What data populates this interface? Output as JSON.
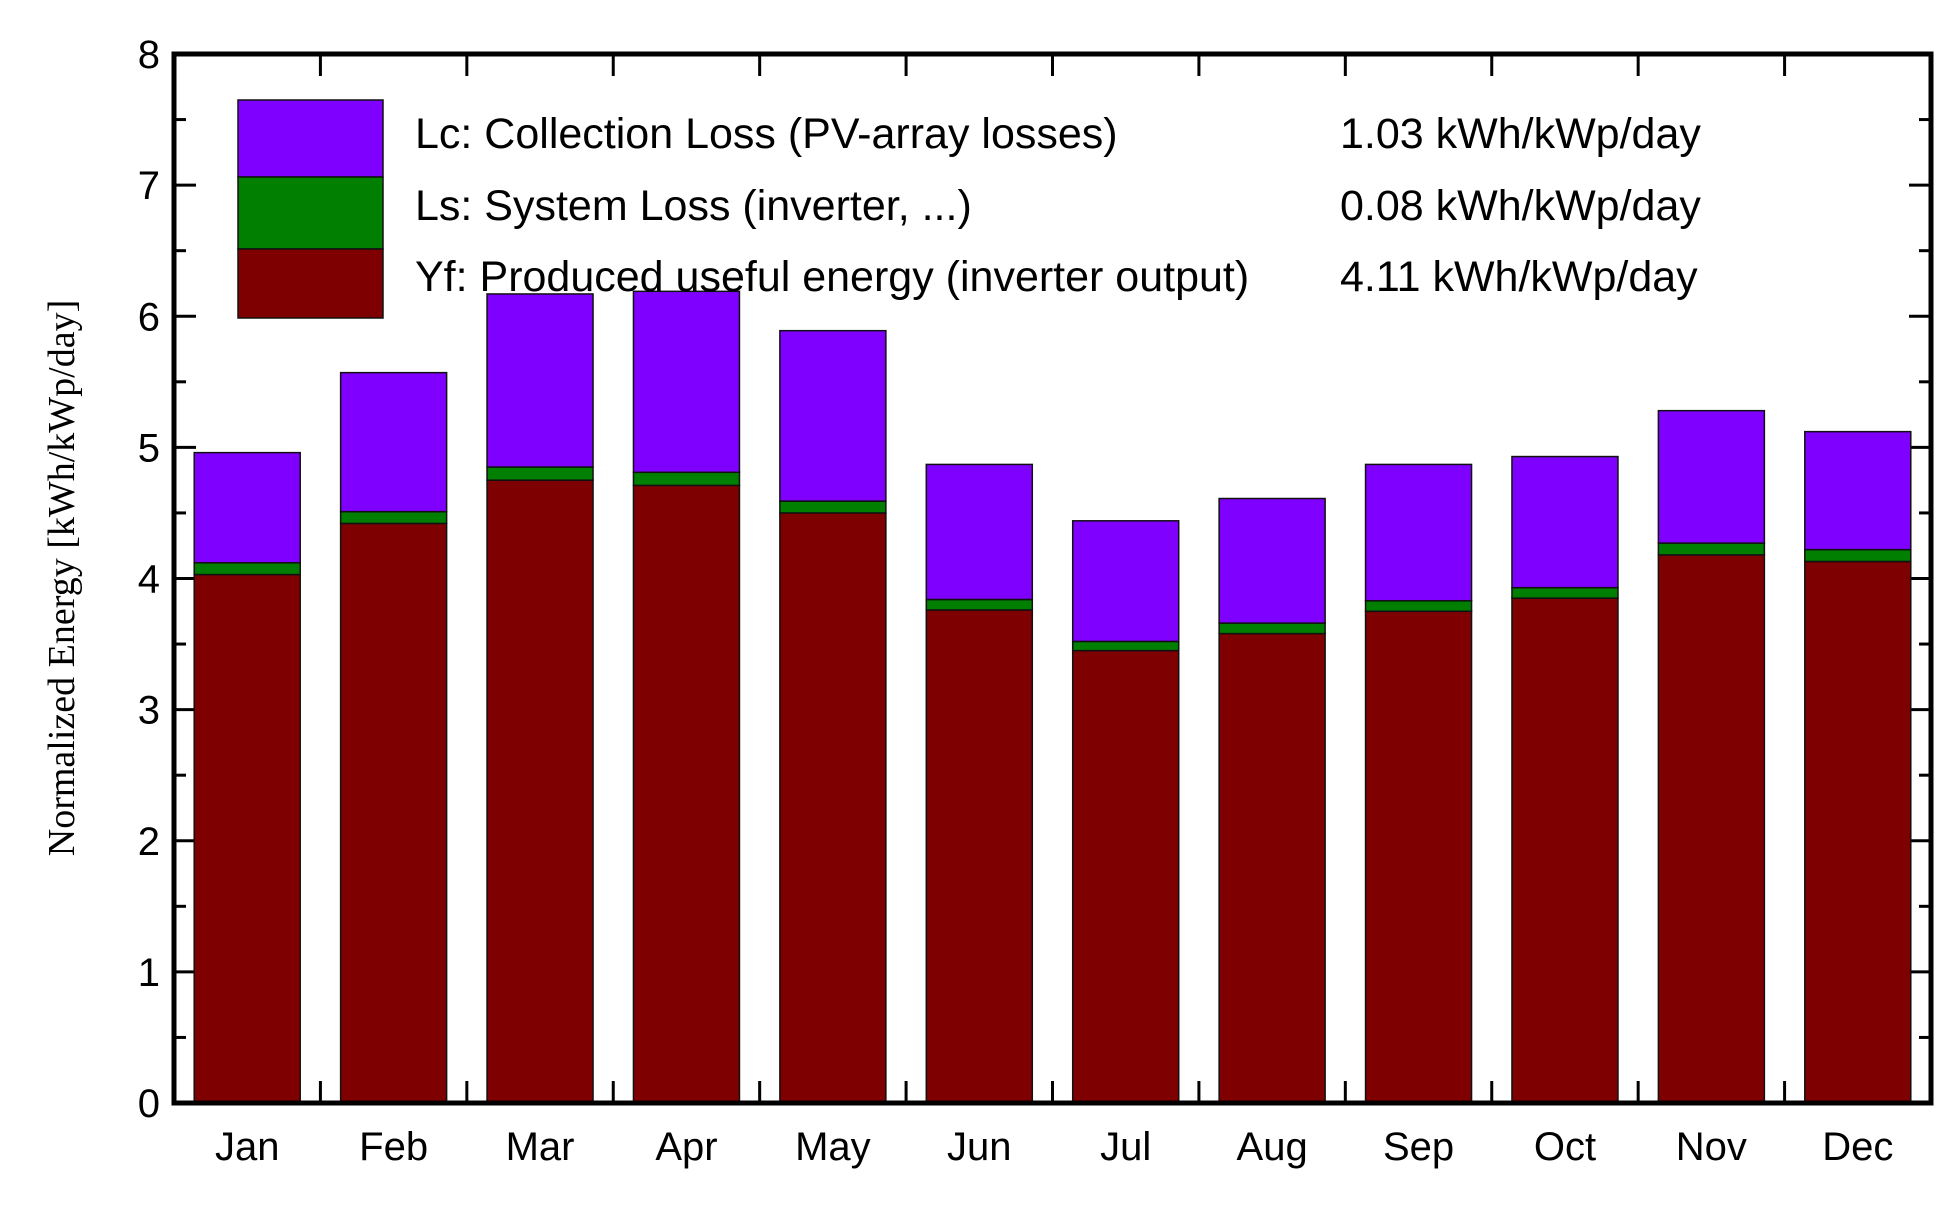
{
  "chart_data": {
    "type": "bar",
    "stacked": true,
    "title": "",
    "xlabel": "",
    "ylabel": "Normalized Energy [kWh/kWp/day]",
    "ylim": [
      0,
      8
    ],
    "yticks": [
      0,
      1,
      2,
      3,
      4,
      5,
      6,
      7,
      8
    ],
    "categories": [
      "Jan",
      "Feb",
      "Mar",
      "Apr",
      "May",
      "Jun",
      "Jul",
      "Aug",
      "Sep",
      "Oct",
      "Nov",
      "Dec"
    ],
    "series": [
      {
        "key": "yf",
        "name": "Yf: Produced useful energy  (inverter output)",
        "summary": "4.11 kWh/kWp/day",
        "color": "#7f0000",
        "values": [
          4.03,
          4.42,
          4.75,
          4.71,
          4.5,
          3.76,
          3.45,
          3.58,
          3.75,
          3.85,
          4.18,
          4.13
        ]
      },
      {
        "key": "ls",
        "name": "Ls: System Loss  (inverter, ...)",
        "summary": "0.08 kWh/kWp/day",
        "color": "#007f00",
        "values": [
          0.09,
          0.09,
          0.1,
          0.1,
          0.09,
          0.08,
          0.07,
          0.08,
          0.08,
          0.08,
          0.09,
          0.09
        ]
      },
      {
        "key": "lc",
        "name": "Lc: Collection Loss (PV-array losses)",
        "summary": "1.03 kWh/kWp/day",
        "color": "#7f00ff",
        "values": [
          0.84,
          1.06,
          1.32,
          1.38,
          1.3,
          1.03,
          0.92,
          0.95,
          1.04,
          1.0,
          1.01,
          0.9
        ]
      }
    ],
    "legend_order": [
      "lc",
      "ls",
      "yf"
    ],
    "legend_position": "top-left, inside plot"
  }
}
